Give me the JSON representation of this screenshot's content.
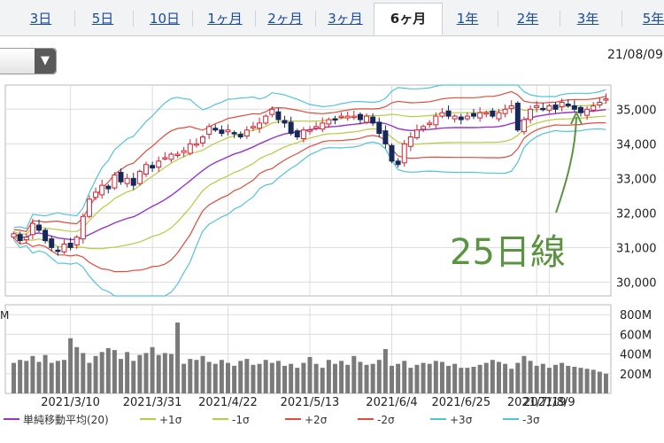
{
  "tabs": [
    {
      "label": "3日",
      "active": false
    },
    {
      "label": "5日",
      "active": false
    },
    {
      "label": "10日",
      "active": false
    },
    {
      "label": "1ヶ月",
      "active": false
    },
    {
      "label": "2ヶ月",
      "active": false
    },
    {
      "label": "3ヶ月",
      "active": false
    },
    {
      "label": "6ヶ月",
      "active": true
    },
    {
      "label": "1年",
      "active": false
    },
    {
      "label": "2年",
      "active": false
    },
    {
      "label": "3年",
      "active": false
    },
    {
      "label": "5年",
      "active": false
    }
  ],
  "select": {
    "arrow": "▼"
  },
  "date_display": "21/08/09",
  "annotation": {
    "text": "25日線"
  },
  "volume_unit": "M",
  "colors": {
    "ma": "#9933cc",
    "s1": "#b5cc44",
    "s2": "#e34b3a",
    "s3": "#53c3db",
    "up": "#d72030",
    "down": "#17285a",
    "volume": "#7a7a7a",
    "annotation": "#5b9440"
  },
  "chart_data": {
    "type": "candlestick",
    "price_ylim": [
      29600,
      35700
    ],
    "price_ticks": [
      "35,000",
      "34,000",
      "33,000",
      "32,000",
      "31,000",
      "30,000"
    ],
    "volume_ylim": [
      0,
      900
    ],
    "volume_ticks": [
      "800M",
      "600M",
      "400M",
      "200M"
    ],
    "x_ticks": [
      "2021/3/10",
      "2021/3/31",
      "2021/4/22",
      "2021/5/13",
      "2021/6/4",
      "2021/6/25",
      "2021/7/19",
      "2021/8/9"
    ],
    "legend": [
      {
        "label": "単純移動平均(20)",
        "color": "#9933cc"
      },
      {
        "label": "+1σ",
        "color": "#b5cc44"
      },
      {
        "label": "-1σ",
        "color": "#b5cc44"
      },
      {
        "label": "+2σ",
        "color": "#e34b3a"
      },
      {
        "label": "-2σ",
        "color": "#e34b3a"
      },
      {
        "label": "+3σ",
        "color": "#53c3db"
      },
      {
        "label": "-3σ",
        "color": "#53c3db"
      }
    ],
    "close": [
      31400,
      31200,
      31300,
      31700,
      31500,
      31200,
      31000,
      30900,
      31100,
      31000,
      31300,
      31900,
      32400,
      32600,
      32800,
      32700,
      33100,
      32900,
      33000,
      32800,
      33200,
      33400,
      33300,
      33500,
      33600,
      33700,
      33700,
      33800,
      34000,
      34000,
      34200,
      34500,
      34400,
      34300,
      34400,
      34300,
      34200,
      34400,
      34500,
      34600,
      34800,
      35000,
      34700,
      34600,
      34300,
      34200,
      34400,
      34400,
      34500,
      34600,
      34700,
      34700,
      34800,
      34800,
      34800,
      34700,
      34800,
      34600,
      34300,
      34000,
      33500,
      33400,
      34000,
      34200,
      34400,
      34500,
      34600,
      34800,
      34900,
      34800,
      34800,
      34700,
      34800,
      34800,
      34900,
      34900,
      34800,
      34900,
      35000,
      35100,
      34400,
      34700,
      35000,
      35100,
      35000,
      35100,
      35000,
      35200,
      35100,
      35000,
      34900,
      35000,
      35100,
      35200,
      35300
    ],
    "volume": [
      310,
      340,
      330,
      380,
      320,
      390,
      310,
      330,
      340,
      560,
      470,
      410,
      310,
      380,
      420,
      460,
      440,
      350,
      420,
      330,
      390,
      410,
      470,
      390,
      410,
      400,
      720,
      300,
      350,
      340,
      380,
      320,
      300,
      340,
      310,
      280,
      330,
      350,
      290,
      300,
      340,
      310,
      330,
      280,
      300,
      260,
      310,
      370,
      300,
      260,
      340,
      300,
      330,
      290,
      380,
      320,
      290,
      300,
      340,
      450,
      280,
      300,
      330,
      260,
      290,
      310,
      300,
      330,
      320,
      280,
      300,
      260,
      260,
      270,
      290,
      310,
      340,
      320,
      300,
      250,
      310,
      380,
      330,
      280,
      300,
      260,
      290,
      310,
      280,
      270,
      260,
      250,
      240,
      220,
      200
    ]
  }
}
